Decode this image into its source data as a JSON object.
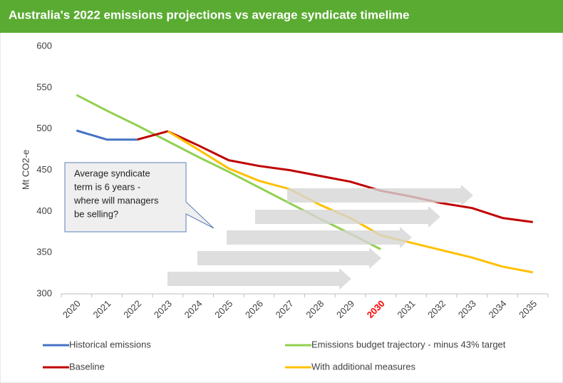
{
  "chart_data": {
    "type": "line",
    "title": "Australia's 2022 emissions projections vs average syndicate timelime",
    "y_label": "Mt CO2-e",
    "categories": [
      "2020",
      "2021",
      "2022",
      "2023",
      "2024",
      "2025",
      "2026",
      "2027",
      "2028",
      "2029",
      "2030",
      "2031",
      "2032",
      "2033",
      "2034",
      "2035"
    ],
    "highlight_category": "2030",
    "highlight_color": "#ff0000",
    "ylim": [
      300,
      600
    ],
    "yticks": [
      300,
      350,
      400,
      450,
      500,
      550,
      600
    ],
    "annotation_lines": [
      "Average syndicate",
      "term is 6 years -",
      "where will managers",
      "be selling?"
    ],
    "series": [
      {
        "name": "Historical emissions",
        "color": "#4472c4",
        "values": [
          498,
          487,
          487,
          null,
          null,
          null,
          null,
          null,
          null,
          null,
          null,
          null,
          null,
          null,
          null,
          null
        ]
      },
      {
        "name": "Emissions budget trajectory - minus 43% target",
        "color": "#92d050",
        "values": [
          541,
          522,
          504,
          485,
          466,
          448,
          429,
          410,
          391,
          373,
          354,
          null,
          null,
          null,
          null,
          null
        ]
      },
      {
        "name": "Baseline",
        "color": "#c00000",
        "values": [
          null,
          null,
          487,
          497,
          480,
          462,
          455,
          450,
          443,
          436,
          425,
          418,
          410,
          404,
          392,
          387
        ]
      },
      {
        "name": "With additional measures",
        "color": "#ffc000",
        "values": [
          null,
          null,
          null,
          497,
          475,
          452,
          437,
          427,
          408,
          392,
          371,
          362,
          353,
          344,
          333,
          326
        ]
      }
    ]
  }
}
